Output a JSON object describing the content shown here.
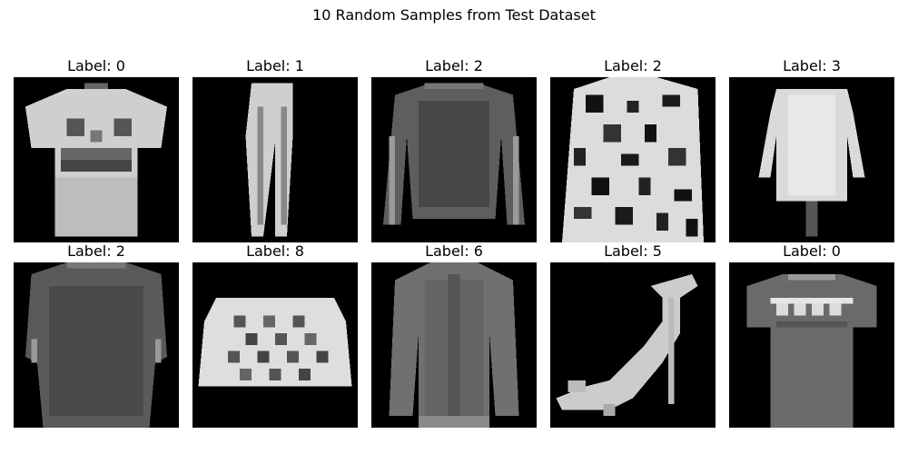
{
  "figure": {
    "title": "10 Random Samples from Test Dataset"
  },
  "samples": [
    {
      "label": "Label: 0",
      "image_icon": "tshirt-image"
    },
    {
      "label": "Label: 1",
      "image_icon": "trouser-image"
    },
    {
      "label": "Label: 2",
      "image_icon": "long-sleeve-pullover-image"
    },
    {
      "label": "Label: 2",
      "image_icon": "patterned-pullover-image"
    },
    {
      "label": "Label: 3",
      "image_icon": "dress-image"
    },
    {
      "label": "Label: 2",
      "image_icon": "pullover-image"
    },
    {
      "label": "Label: 8",
      "image_icon": "bag-image"
    },
    {
      "label": "Label: 6",
      "image_icon": "shirt-image"
    },
    {
      "label": "Label: 5",
      "image_icon": "sandal-image"
    },
    {
      "label": "Label: 0",
      "image_icon": "tshirt-image"
    }
  ]
}
